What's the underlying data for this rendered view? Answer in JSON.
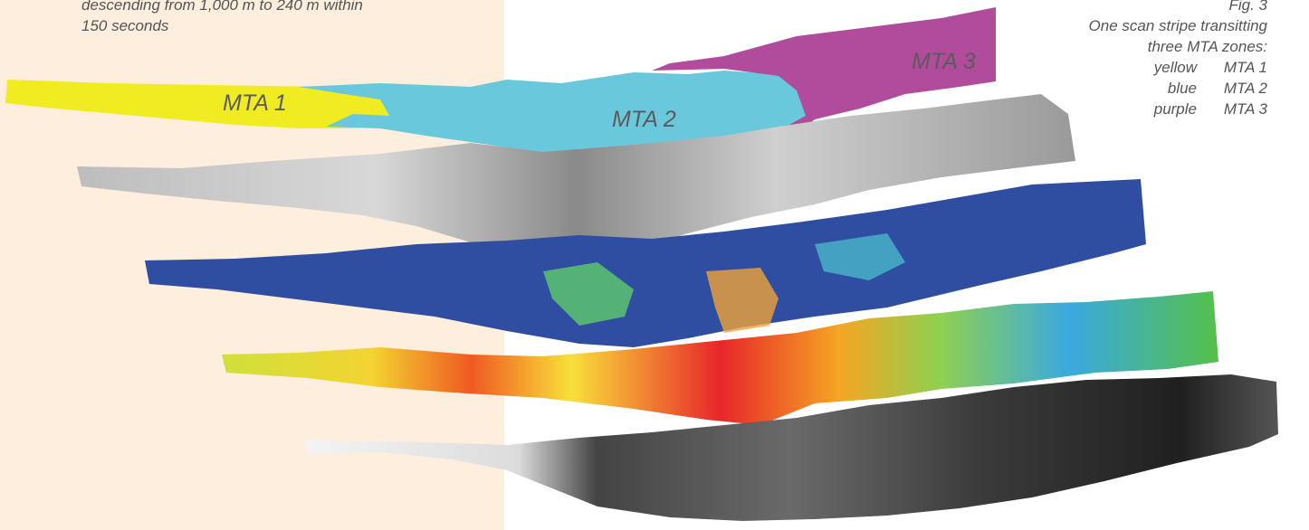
{
  "caption_left": "descending from 1,000 m to 240 m within\n150 seconds",
  "figure": {
    "number": "Fig. 3",
    "caption_lines": [
      "One scan stripe transitting",
      "three MTA zones:"
    ],
    "legend": [
      {
        "color_name": "yellow",
        "zone": "MTA 1",
        "hex": "#f1ec22"
      },
      {
        "color_name": "blue",
        "zone": "MTA 2",
        "hex": "#6ac8dc"
      },
      {
        "color_name": "purple",
        "zone": "MTA 3",
        "hex": "#b14b9b"
      }
    ]
  },
  "zone_labels": {
    "mta1": "MTA 1",
    "mta2": "MTA 2",
    "mta3": "MTA 3"
  },
  "colors": {
    "left_background": "#fdeedd",
    "caption_text": "#555555",
    "mta1": "#f1ec22",
    "mta2": "#6ac8dc",
    "mta3": "#b14b9b",
    "classification_blue": "#2f4ea2"
  }
}
